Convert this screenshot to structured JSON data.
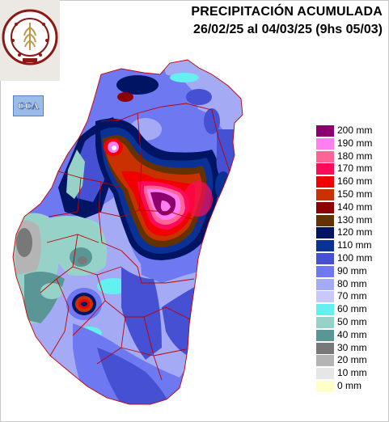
{
  "title": "PRECIPITACIÓN ACUMULADA",
  "subtitle": "26/02/25 al 04/03/25 (9hs 05/03)",
  "logo": {
    "name": "bolsa-de-cereales-seal",
    "lettering": "BOLSA DE CEREALES DE ENTRE RÍOS",
    "year": "1970"
  },
  "badge": {
    "name": "cca-logo",
    "text": "CCA"
  },
  "legend": [
    {
      "label": "200 mm",
      "color": "#8c006e"
    },
    {
      "label": "190 mm",
      "color": "#ff7ef0"
    },
    {
      "label": "180 mm",
      "color": "#ff6496"
    },
    {
      "label": "170 mm",
      "color": "#ff0a5a"
    },
    {
      "label": "160 mm",
      "color": "#f00000"
    },
    {
      "label": "150 mm",
      "color": "#c83200"
    },
    {
      "label": "140 mm",
      "color": "#8c0000"
    },
    {
      "label": "130 mm",
      "color": "#643200"
    },
    {
      "label": "120 mm",
      "color": "#001464"
    },
    {
      "label": "110 mm",
      "color": "#0a3296"
    },
    {
      "label": "100 mm",
      "color": "#4650d2"
    },
    {
      "label": "90 mm",
      "color": "#6e78f0"
    },
    {
      "label": "80 mm",
      "color": "#a5aaf5"
    },
    {
      "label": "70 mm",
      "color": "#c8c8fa"
    },
    {
      "label": "60 mm",
      "color": "#64f0f0"
    },
    {
      "label": "50 mm",
      "color": "#96d2c8"
    },
    {
      "label": "40 mm",
      "color": "#5a9696"
    },
    {
      "label": "30 mm",
      "color": "#787878"
    },
    {
      "label": "20 mm",
      "color": "#b4b4b4"
    },
    {
      "label": "10 mm",
      "color": "#e6e6e6"
    },
    {
      "label": "0 mm",
      "color": "#ffffc8"
    }
  ]
}
